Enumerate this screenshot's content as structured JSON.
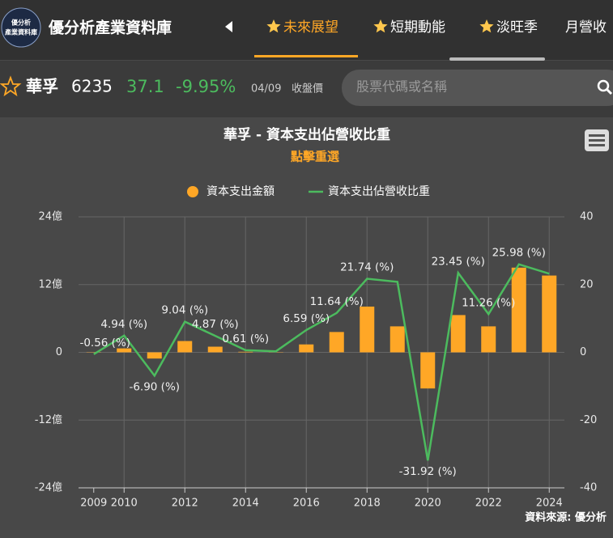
{
  "header": {
    "logo_lines": [
      "優分析",
      "產業資料庫"
    ],
    "app_title": "優分析產業資料庫",
    "tabs": [
      "未來展望",
      "短期動能",
      "淡旺季",
      "月營收"
    ],
    "active_tab": 0
  },
  "stock": {
    "name": "華孚",
    "code": "6235",
    "price": "37.1",
    "change": "-9.95%",
    "date": "04/09",
    "price_note": "收盤價",
    "search_placeholder": "股票代碼或名稱"
  },
  "chart_data": {
    "type": "combo",
    "title": "華孚 - 資本支出佔營收比重",
    "subtitle": "點擊重選",
    "source": "資料來源: 優分析",
    "categories": [
      "2009",
      "2010",
      null,
      "2012",
      null,
      "2014",
      null,
      "2016",
      null,
      "2018",
      null,
      "2020",
      null,
      "2022",
      null,
      "2024"
    ],
    "series": [
      {
        "name": "資本支出金額",
        "type": "bar",
        "color": "#ffa726",
        "axis": "y",
        "values": [
          0.05,
          0.7,
          -1.1,
          2.0,
          1.0,
          0.1,
          0.05,
          1.4,
          3.6,
          8.1,
          4.6,
          -6.4,
          6.6,
          4.6,
          15.0,
          13.6
        ]
      },
      {
        "name": "資本支出佔營收比重",
        "type": "line",
        "color": "#4cbb5e",
        "axis": "y2",
        "values": [
          -0.56,
          4.94,
          -6.9,
          9.04,
          4.87,
          0.61,
          0.3,
          6.59,
          11.64,
          21.74,
          20.8,
          -31.92,
          23.45,
          11.26,
          25.98,
          23.2
        ],
        "value_labels": [
          "-0.56 (%)",
          "4.94 (%)",
          "-6.90 (%)",
          "9.04 (%)",
          "4.87 (%)",
          "0.61 (%)",
          null,
          "6.59 (%)",
          "11.64 (%)",
          "21.74 (%)",
          null,
          "-31.92 (%)",
          "23.45 (%)",
          "11.26 (%)",
          "25.98 (%)",
          null
        ]
      }
    ],
    "ylim": [
      -24,
      24
    ],
    "yticks": [
      {
        "value": -24,
        "label": "-24億"
      },
      {
        "value": -12,
        "label": "-12億"
      },
      0,
      {
        "value": 12,
        "label": "12億"
      },
      {
        "value": 24,
        "label": "24億"
      }
    ],
    "y2lim": [
      -40,
      40
    ],
    "y2ticks": [
      -40,
      -20,
      0,
      20,
      40
    ],
    "grid": true,
    "legend": "top"
  }
}
